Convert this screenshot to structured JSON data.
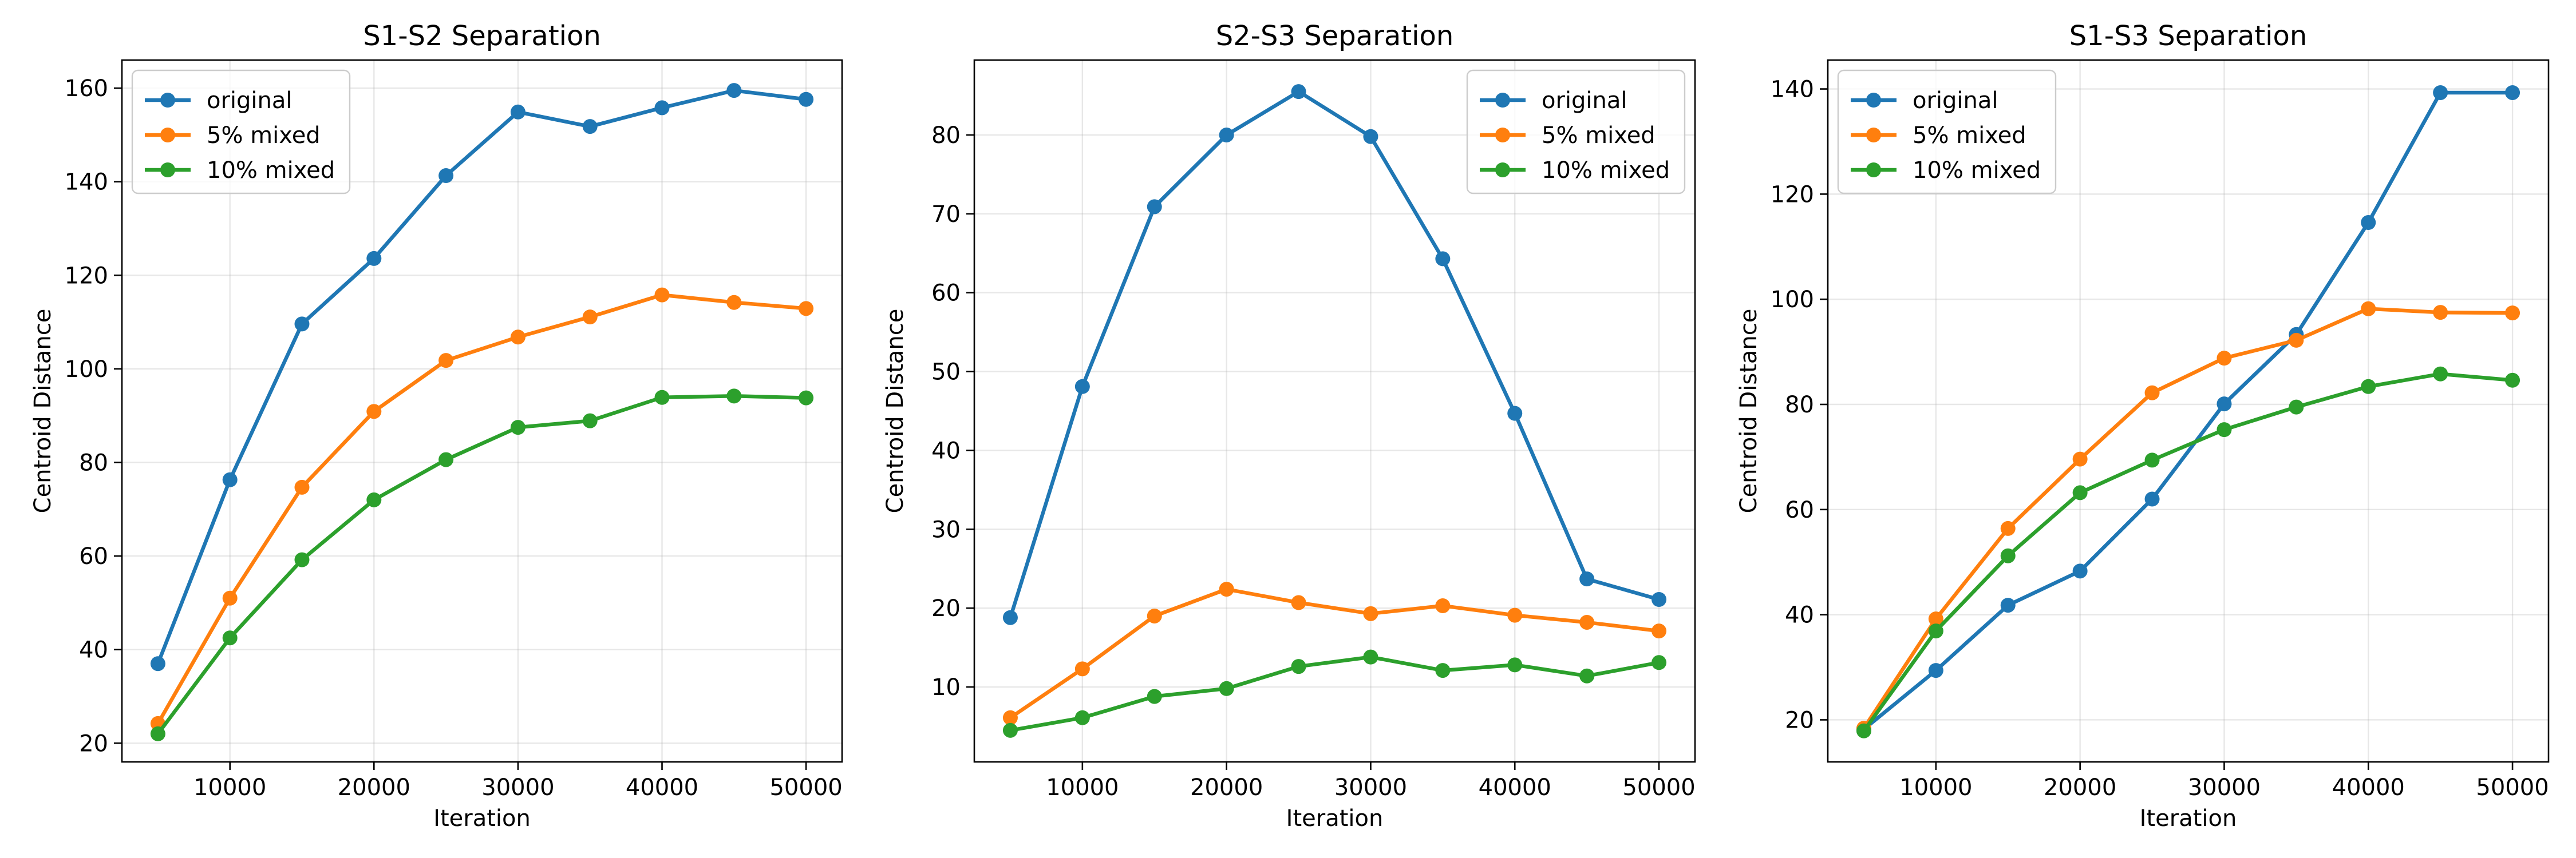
{
  "figure": {
    "colors": {
      "original": "#1f77b4",
      "5% mixed": "#ff7f0e",
      "10% mixed": "#2ca02c"
    }
  },
  "chart_data": [
    {
      "type": "line",
      "title": "S1-S2 Separation",
      "xlabel": "Iteration",
      "ylabel": "Centroid Distance",
      "x": [
        5000,
        10000,
        15000,
        20000,
        25000,
        30000,
        35000,
        40000,
        45000,
        50000
      ],
      "xlim": [
        2500,
        52500
      ],
      "ylim": [
        16,
        166
      ],
      "xticks": [
        10000,
        20000,
        30000,
        40000,
        50000
      ],
      "yticks": [
        20,
        40,
        60,
        80,
        100,
        120,
        140,
        160
      ],
      "grid": true,
      "legend": "upper-left",
      "series": [
        {
          "name": "original",
          "values": [
            37,
            76.3,
            109.6,
            123.6,
            141.3,
            154.9,
            151.8,
            155.8,
            159.5,
            157.6
          ]
        },
        {
          "name": "5% mixed",
          "values": [
            24.2,
            51,
            74.7,
            90.9,
            101.8,
            106.8,
            111.1,
            115.8,
            114.2,
            112.9
          ]
        },
        {
          "name": "10% mixed",
          "values": [
            22,
            42.5,
            59.2,
            72,
            80.6,
            87.5,
            88.9,
            93.9,
            94.2,
            93.8
          ]
        }
      ]
    },
    {
      "type": "line",
      "title": "S2-S3 Separation",
      "xlabel": "Iteration",
      "ylabel": "Centroid Distance",
      "x": [
        5000,
        10000,
        15000,
        20000,
        25000,
        30000,
        35000,
        40000,
        45000,
        50000
      ],
      "xlim": [
        2500,
        52500
      ],
      "ylim": [
        0.5,
        89.5
      ],
      "xticks": [
        10000,
        20000,
        30000,
        40000,
        50000
      ],
      "yticks": [
        10,
        20,
        30,
        40,
        50,
        60,
        70,
        80
      ],
      "grid": true,
      "legend": "upper-right",
      "series": [
        {
          "name": "original",
          "values": [
            18.8,
            48.1,
            70.9,
            80,
            85.5,
            79.8,
            64.3,
            44.7,
            23.7,
            21.1
          ]
        },
        {
          "name": "5% mixed",
          "values": [
            6.1,
            12.3,
            19,
            22.4,
            20.7,
            19.3,
            20.3,
            19.1,
            18.2,
            17.1
          ]
        },
        {
          "name": "10% mixed",
          "values": [
            4.5,
            6.1,
            8.8,
            9.8,
            12.6,
            13.8,
            12.1,
            12.8,
            11.4,
            13.1
          ]
        }
      ]
    },
    {
      "type": "line",
      "title": "S1-S3 Separation",
      "xlabel": "Iteration",
      "ylabel": "Centroid Distance",
      "x": [
        5000,
        10000,
        15000,
        20000,
        25000,
        30000,
        35000,
        40000,
        45000,
        50000
      ],
      "xlim": [
        2500,
        52500
      ],
      "ylim": [
        12,
        145.5
      ],
      "xticks": [
        10000,
        20000,
        30000,
        40000,
        50000
      ],
      "yticks": [
        20,
        40,
        60,
        80,
        100,
        120,
        140
      ],
      "grid": true,
      "legend": "upper-left",
      "series": [
        {
          "name": "original",
          "values": [
            18.2,
            29.4,
            41.8,
            48.3,
            62,
            80.1,
            93.3,
            114.6,
            139.3,
            139.3
          ]
        },
        {
          "name": "5% mixed",
          "values": [
            18.4,
            39.2,
            56.4,
            69.6,
            82.2,
            88.8,
            92.2,
            98.2,
            97.5,
            97.4
          ]
        },
        {
          "name": "10% mixed",
          "values": [
            17.9,
            36.9,
            51.2,
            63.2,
            69.4,
            75.2,
            79.5,
            83.4,
            85.8,
            84.6
          ]
        }
      ]
    }
  ]
}
